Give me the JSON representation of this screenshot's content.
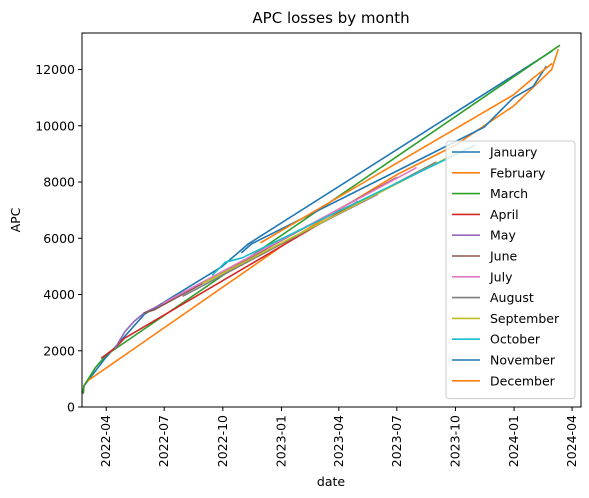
{
  "chart_data": {
    "type": "line",
    "title": "APC losses by month",
    "xlabel": "date",
    "ylabel": "APC",
    "x_ticks": [
      "2022-04",
      "2022-07",
      "2022-10",
      "2023-01",
      "2023-04",
      "2023-07",
      "2023-10",
      "2024-01",
      "2024-04"
    ],
    "y_ticks": [
      0,
      2000,
      4000,
      6000,
      8000,
      10000,
      12000
    ],
    "xlim": [
      "2022-02-22",
      "2024-04-15"
    ],
    "ylim": [
      0,
      13300
    ],
    "grid": false,
    "legend_position": "lower right",
    "colors": [
      "#1f77b4",
      "#ff7f0e",
      "#2ca02c",
      "#d62728",
      "#9467bd",
      "#8c564b",
      "#e377c2",
      "#7f7f7f",
      "#bcbd22",
      "#17becf",
      "#1f77b4",
      "#ff7f0e"
    ],
    "series": [
      {
        "name": "January",
        "points": [
          [
            "2022-02-24",
            500
          ],
          [
            "2022-02-25",
            750
          ],
          [
            "2022-03-31",
            1750
          ],
          [
            "2022-05-31",
            3300
          ],
          [
            "2022-09-30",
            5000
          ],
          [
            "2022-11-10",
            5800
          ],
          [
            "2024-02-29",
            12650
          ]
        ]
      },
      {
        "name": "February",
        "points": [
          [
            "2022-02-24",
            500
          ],
          [
            "2022-02-25",
            750
          ],
          [
            "2022-03-01",
            900
          ],
          [
            "2023-02-01",
            6200
          ],
          [
            "2023-06-30",
            8250
          ],
          [
            "2023-09-30",
            9300
          ],
          [
            "2023-12-31",
            10700
          ],
          [
            "2024-02-29",
            12000
          ],
          [
            "2024-03-10",
            12700
          ]
        ]
      },
      {
        "name": "March",
        "points": [
          [
            "2022-02-24",
            500
          ],
          [
            "2022-02-25",
            750
          ],
          [
            "2022-03-15",
            1400
          ],
          [
            "2022-04-01",
            1850
          ],
          [
            "2024-03-12",
            12850
          ]
        ]
      },
      {
        "name": "April",
        "points": [
          [
            "2022-03-25",
            1750
          ],
          [
            "2022-04-15",
            2100
          ],
          [
            "2022-04-30",
            2450
          ],
          [
            "2023-04-30",
            7300
          ]
        ]
      },
      {
        "name": "May",
        "points": [
          [
            "2022-04-15",
            2100
          ],
          [
            "2022-05-01",
            2700
          ],
          [
            "2022-05-15",
            3050
          ],
          [
            "2022-05-31",
            3350
          ],
          [
            "2023-05-31",
            7550
          ]
        ]
      },
      {
        "name": "June",
        "points": [
          [
            "2022-05-31",
            3350
          ],
          [
            "2022-06-15",
            3450
          ],
          [
            "2023-06-30",
            8150
          ]
        ]
      },
      {
        "name": "July",
        "points": [
          [
            "2022-06-30",
            3700
          ],
          [
            "2023-07-31",
            8500
          ]
        ]
      },
      {
        "name": "August",
        "points": [
          [
            "2022-07-31",
            3950
          ],
          [
            "2023-08-31",
            8700
          ]
        ]
      },
      {
        "name": "September",
        "points": [
          [
            "2022-08-31",
            4400
          ],
          [
            "2023-09-30",
            9000
          ]
        ]
      },
      {
        "name": "October",
        "points": [
          [
            "2022-09-15",
            4700
          ],
          [
            "2022-10-05",
            5150
          ],
          [
            "2022-10-31",
            5300
          ],
          [
            "2023-10-31",
            9300
          ]
        ]
      },
      {
        "name": "November",
        "points": [
          [
            "2022-10-31",
            5500
          ],
          [
            "2022-11-15",
            5800
          ],
          [
            "2023-11-15",
            9950
          ],
          [
            "2023-12-31",
            11000
          ],
          [
            "2024-01-31",
            11400
          ],
          [
            "2024-02-20",
            12100
          ]
        ]
      },
      {
        "name": "December",
        "points": [
          [
            "2022-11-30",
            5850
          ],
          [
            "2023-12-31",
            11100
          ],
          [
            "2024-01-31",
            11700
          ],
          [
            "2024-02-29",
            12200
          ]
        ]
      }
    ]
  }
}
